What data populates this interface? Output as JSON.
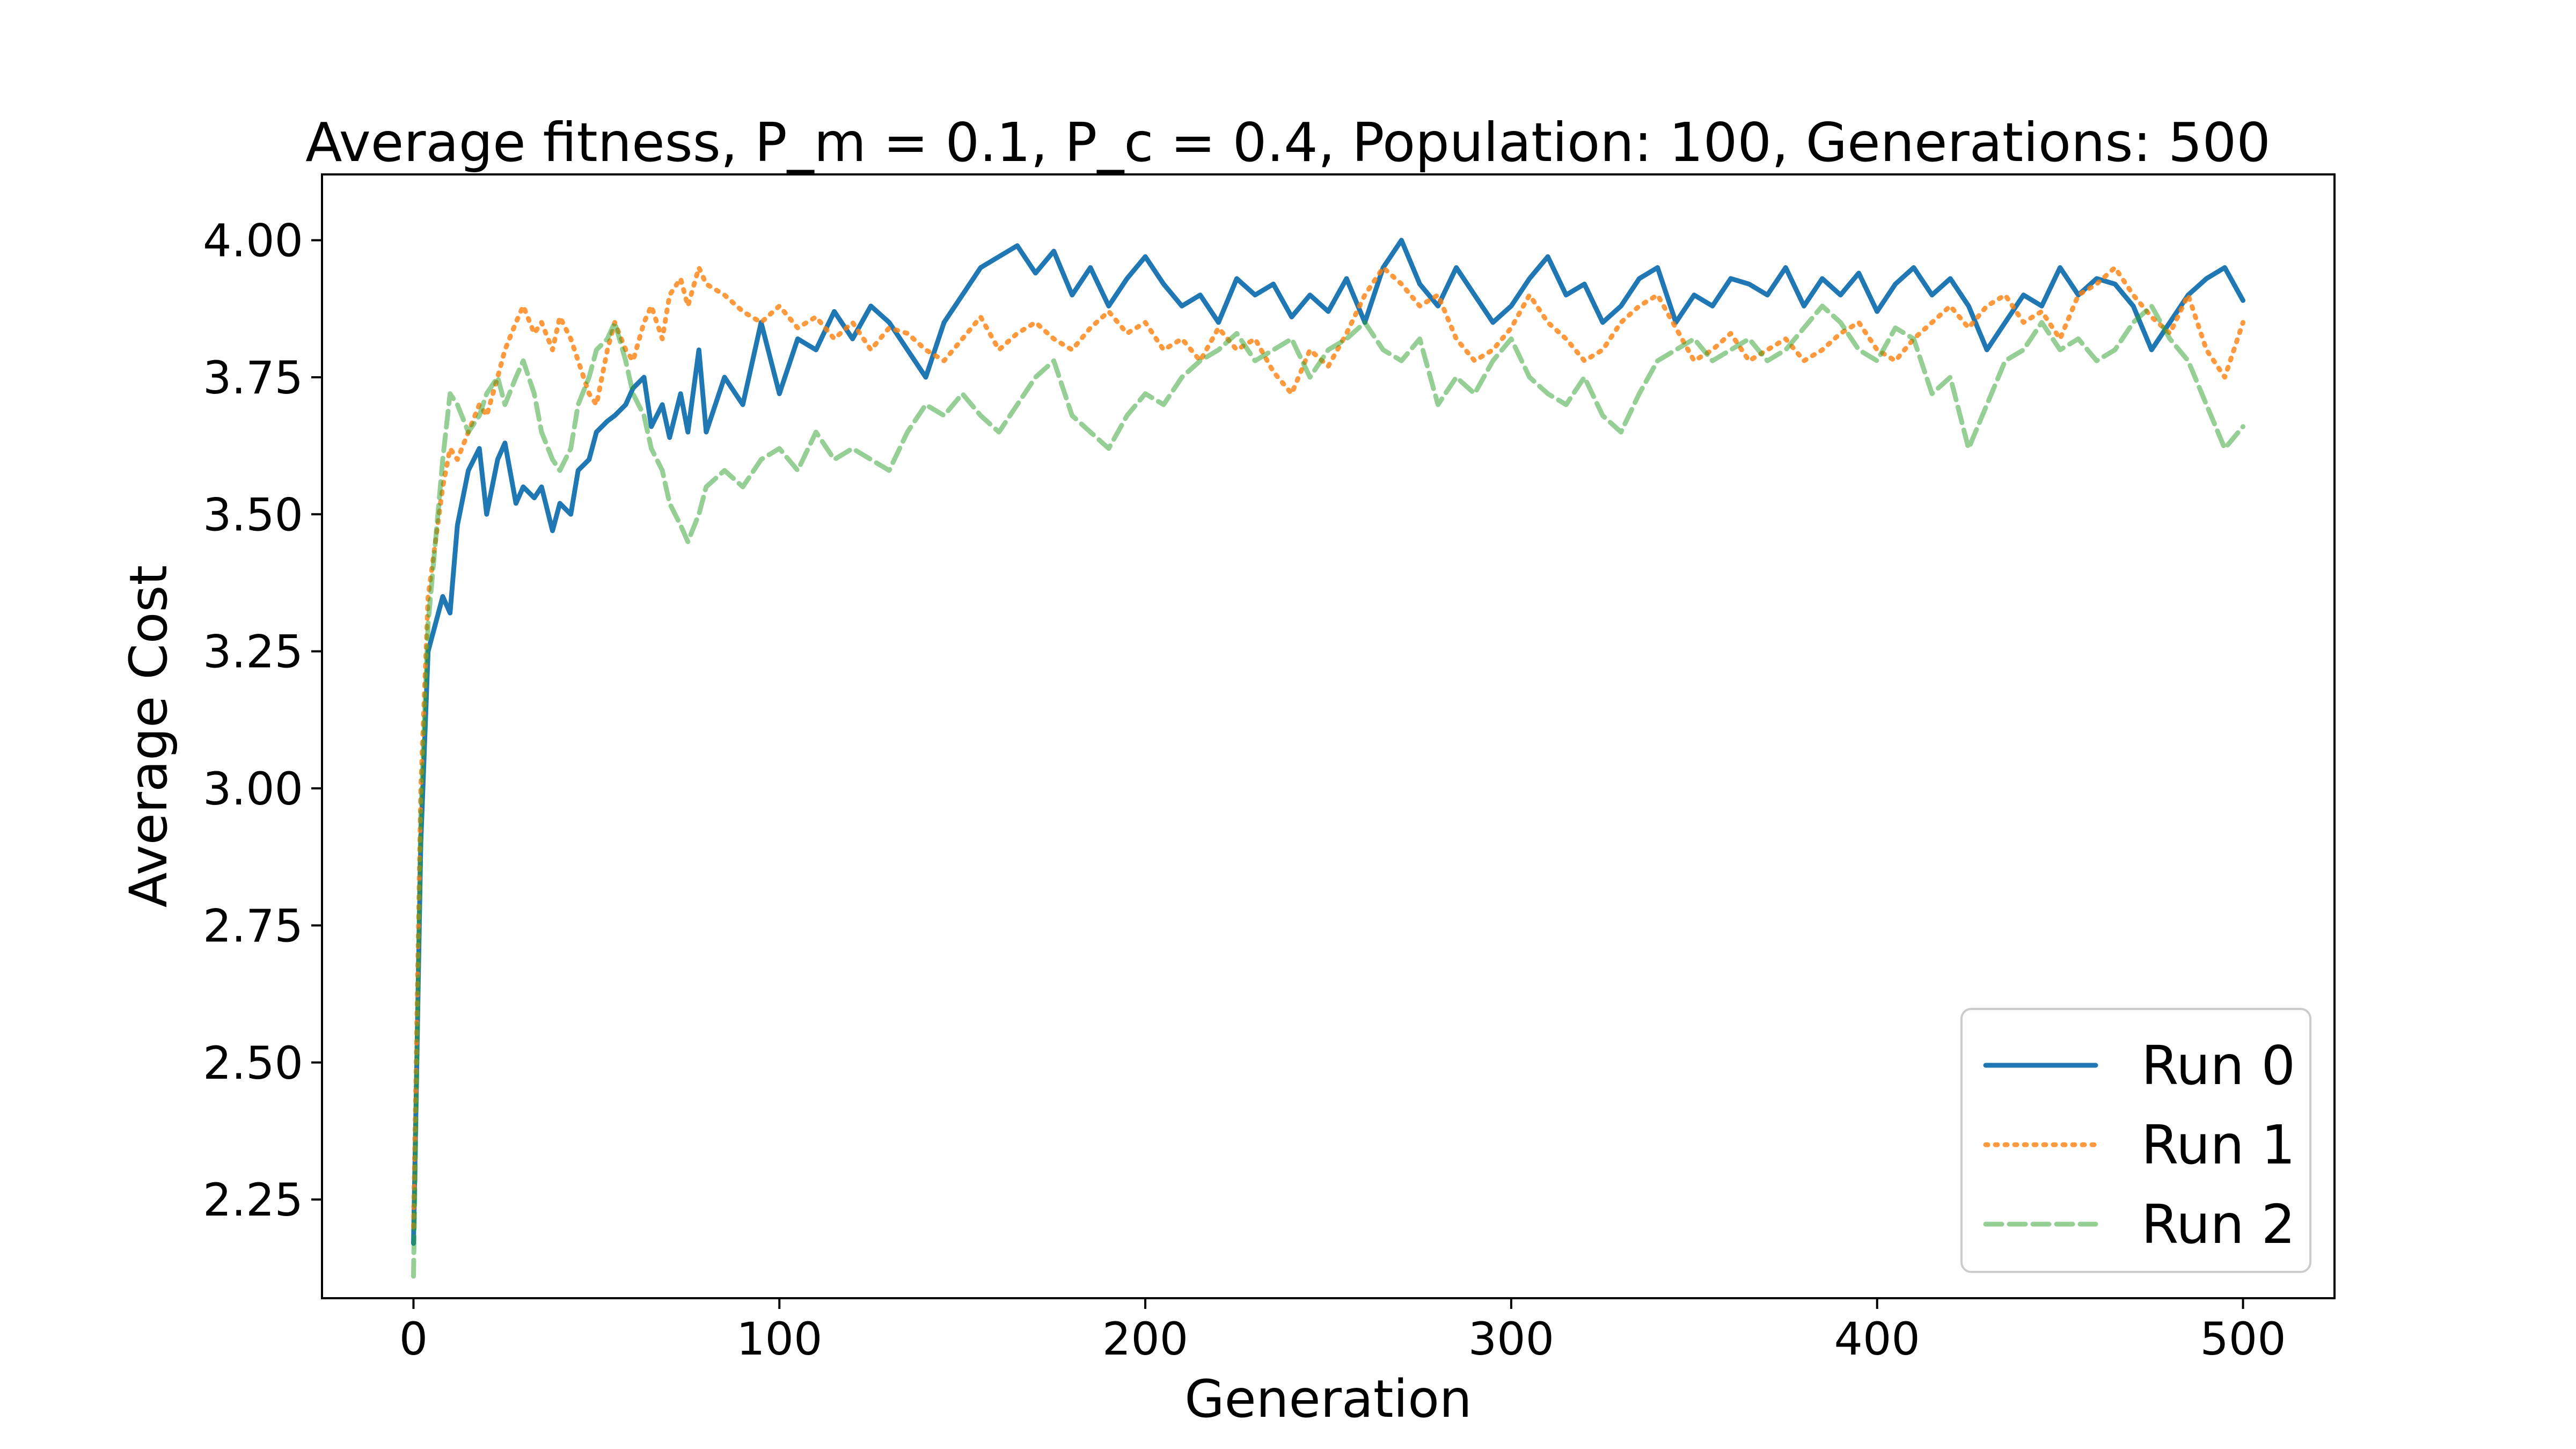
{
  "chart_data": {
    "type": "line",
    "title": "Average fitness, P_m = 0.1, P_c = 0.4, Population: 100, Generations: 500",
    "xlabel": "Generation",
    "ylabel": "Average Cost",
    "xlim": [
      -25,
      525
    ],
    "ylim": [
      2.07,
      4.12
    ],
    "xticks": [
      0,
      100,
      200,
      300,
      400,
      500
    ],
    "xtick_labels": [
      "0",
      "100",
      "200",
      "300",
      "400",
      "500"
    ],
    "yticks": [
      2.25,
      2.5,
      2.75,
      3.0,
      3.25,
      3.5,
      3.75,
      4.0
    ],
    "ytick_labels": [
      "2.25",
      "2.50",
      "2.75",
      "3.00",
      "3.25",
      "3.50",
      "3.75",
      "4.00"
    ],
    "grid": false,
    "legend": "lower right",
    "series": [
      {
        "name": "Run 0",
        "color": "#1f77b4",
        "style": "solid",
        "x": [
          0,
          2,
          4,
          6,
          8,
          10,
          12,
          15,
          18,
          20,
          23,
          25,
          28,
          30,
          33,
          35,
          38,
          40,
          43,
          45,
          48,
          50,
          53,
          55,
          58,
          60,
          63,
          65,
          68,
          70,
          73,
          75,
          78,
          80,
          85,
          90,
          95,
          100,
          105,
          110,
          115,
          120,
          125,
          130,
          135,
          140,
          145,
          150,
          155,
          160,
          165,
          170,
          175,
          180,
          185,
          190,
          195,
          200,
          205,
          210,
          215,
          220,
          225,
          230,
          235,
          240,
          245,
          250,
          255,
          260,
          265,
          270,
          275,
          280,
          285,
          290,
          295,
          300,
          305,
          310,
          315,
          320,
          325,
          330,
          335,
          340,
          345,
          350,
          355,
          360,
          365,
          370,
          375,
          380,
          385,
          390,
          395,
          400,
          405,
          410,
          415,
          420,
          425,
          430,
          435,
          440,
          445,
          450,
          455,
          460,
          465,
          470,
          475,
          480,
          485,
          490,
          495,
          500
        ],
        "y": [
          2.17,
          2.9,
          3.25,
          3.3,
          3.35,
          3.32,
          3.48,
          3.58,
          3.62,
          3.5,
          3.6,
          3.63,
          3.52,
          3.55,
          3.53,
          3.55,
          3.47,
          3.52,
          3.5,
          3.58,
          3.6,
          3.65,
          3.67,
          3.68,
          3.7,
          3.73,
          3.75,
          3.66,
          3.7,
          3.64,
          3.72,
          3.65,
          3.8,
          3.65,
          3.75,
          3.7,
          3.85,
          3.72,
          3.82,
          3.8,
          3.87,
          3.82,
          3.88,
          3.85,
          3.8,
          3.75,
          3.85,
          3.9,
          3.95,
          3.97,
          3.99,
          3.94,
          3.98,
          3.9,
          3.95,
          3.88,
          3.93,
          3.97,
          3.92,
          3.88,
          3.9,
          3.85,
          3.93,
          3.9,
          3.92,
          3.86,
          3.9,
          3.87,
          3.93,
          3.85,
          3.95,
          4.0,
          3.92,
          3.88,
          3.95,
          3.9,
          3.85,
          3.88,
          3.93,
          3.97,
          3.9,
          3.92,
          3.85,
          3.88,
          3.93,
          3.95,
          3.85,
          3.9,
          3.88,
          3.93,
          3.92,
          3.9,
          3.95,
          3.88,
          3.93,
          3.9,
          3.94,
          3.87,
          3.92,
          3.95,
          3.9,
          3.93,
          3.88,
          3.8,
          3.85,
          3.9,
          3.88,
          3.95,
          3.9,
          3.93,
          3.92,
          3.88,
          3.8,
          3.85,
          3.9,
          3.93,
          3.95,
          3.89
        ]
      },
      {
        "name": "Run 1",
        "color": "#ff7f0e",
        "style": "dotted",
        "x": [
          0,
          2,
          4,
          6,
          8,
          10,
          12,
          15,
          18,
          20,
          23,
          25,
          28,
          30,
          33,
          35,
          38,
          40,
          43,
          45,
          48,
          50,
          53,
          55,
          58,
          60,
          63,
          65,
          68,
          70,
          73,
          75,
          78,
          80,
          85,
          90,
          95,
          100,
          105,
          110,
          115,
          120,
          125,
          130,
          135,
          140,
          145,
          150,
          155,
          160,
          165,
          170,
          175,
          180,
          185,
          190,
          195,
          200,
          205,
          210,
          215,
          220,
          225,
          230,
          235,
          240,
          245,
          250,
          255,
          260,
          265,
          270,
          275,
          280,
          285,
          290,
          295,
          300,
          305,
          310,
          315,
          320,
          325,
          330,
          335,
          340,
          345,
          350,
          355,
          360,
          365,
          370,
          375,
          380,
          385,
          390,
          395,
          400,
          405,
          410,
          415,
          420,
          425,
          430,
          435,
          440,
          445,
          450,
          455,
          460,
          465,
          470,
          475,
          480,
          485,
          490,
          495,
          500
        ],
        "y": [
          2.2,
          3.0,
          3.35,
          3.45,
          3.55,
          3.62,
          3.6,
          3.65,
          3.7,
          3.68,
          3.75,
          3.8,
          3.85,
          3.88,
          3.83,
          3.85,
          3.8,
          3.86,
          3.82,
          3.78,
          3.72,
          3.7,
          3.8,
          3.85,
          3.8,
          3.78,
          3.85,
          3.88,
          3.82,
          3.9,
          3.93,
          3.88,
          3.95,
          3.92,
          3.9,
          3.87,
          3.85,
          3.88,
          3.84,
          3.86,
          3.82,
          3.85,
          3.8,
          3.84,
          3.83,
          3.8,
          3.78,
          3.82,
          3.86,
          3.8,
          3.83,
          3.85,
          3.82,
          3.8,
          3.84,
          3.87,
          3.83,
          3.85,
          3.8,
          3.82,
          3.78,
          3.84,
          3.8,
          3.82,
          3.76,
          3.72,
          3.8,
          3.77,
          3.83,
          3.9,
          3.95,
          3.92,
          3.88,
          3.9,
          3.82,
          3.78,
          3.8,
          3.84,
          3.9,
          3.85,
          3.82,
          3.78,
          3.8,
          3.85,
          3.88,
          3.9,
          3.84,
          3.78,
          3.8,
          3.83,
          3.78,
          3.8,
          3.82,
          3.78,
          3.8,
          3.83,
          3.85,
          3.8,
          3.78,
          3.82,
          3.85,
          3.88,
          3.84,
          3.88,
          3.9,
          3.85,
          3.87,
          3.82,
          3.9,
          3.92,
          3.95,
          3.9,
          3.86,
          3.83,
          3.9,
          3.8,
          3.75,
          3.85
        ]
      },
      {
        "name": "Run 2",
        "color": "#2ca02c",
        "style": "dashed",
        "x": [
          0,
          2,
          4,
          6,
          8,
          10,
          12,
          15,
          18,
          20,
          23,
          25,
          28,
          30,
          33,
          35,
          38,
          40,
          43,
          45,
          48,
          50,
          53,
          55,
          58,
          60,
          63,
          65,
          68,
          70,
          73,
          75,
          78,
          80,
          85,
          90,
          95,
          100,
          105,
          110,
          115,
          120,
          125,
          130,
          135,
          140,
          145,
          150,
          155,
          160,
          165,
          170,
          175,
          180,
          185,
          190,
          195,
          200,
          205,
          210,
          215,
          220,
          225,
          230,
          235,
          240,
          245,
          250,
          255,
          260,
          265,
          270,
          275,
          280,
          285,
          290,
          295,
          300,
          305,
          310,
          315,
          320,
          325,
          330,
          335,
          340,
          345,
          350,
          355,
          360,
          365,
          370,
          375,
          380,
          385,
          390,
          395,
          400,
          405,
          410,
          415,
          420,
          425,
          430,
          435,
          440,
          445,
          450,
          455,
          460,
          465,
          470,
          475,
          480,
          485,
          490,
          495,
          500
        ],
        "y": [
          2.11,
          2.95,
          3.3,
          3.45,
          3.6,
          3.72,
          3.7,
          3.65,
          3.68,
          3.72,
          3.75,
          3.7,
          3.75,
          3.78,
          3.72,
          3.65,
          3.6,
          3.58,
          3.62,
          3.7,
          3.75,
          3.8,
          3.82,
          3.85,
          3.78,
          3.72,
          3.68,
          3.62,
          3.58,
          3.52,
          3.48,
          3.45,
          3.5,
          3.55,
          3.58,
          3.55,
          3.6,
          3.62,
          3.58,
          3.65,
          3.6,
          3.62,
          3.6,
          3.58,
          3.65,
          3.7,
          3.68,
          3.72,
          3.68,
          3.65,
          3.7,
          3.75,
          3.78,
          3.68,
          3.65,
          3.62,
          3.68,
          3.72,
          3.7,
          3.75,
          3.78,
          3.8,
          3.83,
          3.78,
          3.8,
          3.82,
          3.75,
          3.8,
          3.82,
          3.85,
          3.8,
          3.78,
          3.82,
          3.7,
          3.75,
          3.72,
          3.78,
          3.82,
          3.75,
          3.72,
          3.7,
          3.75,
          3.68,
          3.65,
          3.72,
          3.78,
          3.8,
          3.82,
          3.78,
          3.8,
          3.82,
          3.78,
          3.8,
          3.84,
          3.88,
          3.85,
          3.8,
          3.78,
          3.84,
          3.82,
          3.72,
          3.75,
          3.62,
          3.7,
          3.78,
          3.8,
          3.85,
          3.8,
          3.82,
          3.78,
          3.8,
          3.85,
          3.88,
          3.82,
          3.78,
          3.7,
          3.62,
          3.66
        ]
      }
    ]
  }
}
